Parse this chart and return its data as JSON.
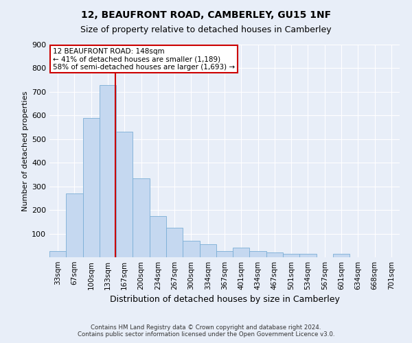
{
  "title": "12, BEAUFRONT ROAD, CAMBERLEY, GU15 1NF",
  "subtitle": "Size of property relative to detached houses in Camberley",
  "xlabel": "Distribution of detached houses by size in Camberley",
  "ylabel": "Number of detached properties",
  "bar_labels": [
    "33sqm",
    "67sqm",
    "100sqm",
    "133sqm",
    "167sqm",
    "200sqm",
    "234sqm",
    "267sqm",
    "300sqm",
    "334sqm",
    "367sqm",
    "401sqm",
    "434sqm",
    "467sqm",
    "501sqm",
    "534sqm",
    "567sqm",
    "601sqm",
    "634sqm",
    "668sqm",
    "701sqm"
  ],
  "bar_values": [
    25,
    270,
    590,
    730,
    530,
    335,
    175,
    125,
    70,
    55,
    25,
    40,
    25,
    20,
    15,
    15,
    0,
    15,
    0,
    0,
    0
  ],
  "bar_color": "#c5d8f0",
  "bar_edgecolor": "#7aaed6",
  "bar_linewidth": 0.6,
  "vline_color": "#cc0000",
  "vline_linewidth": 1.5,
  "vline_x_index": 3.45,
  "ylim": [
    0,
    900
  ],
  "yticks": [
    0,
    100,
    200,
    300,
    400,
    500,
    600,
    700,
    800,
    900
  ],
  "annotation_title": "12 BEAUFRONT ROAD: 148sqm",
  "annotation_line1": "← 41% of detached houses are smaller (1,189)",
  "annotation_line2": "58% of semi-detached houses are larger (1,693) →",
  "annotation_box_facecolor": "#ffffff",
  "annotation_box_edgecolor": "#cc0000",
  "annotation_fontsize": 7.5,
  "footer_line1": "Contains HM Land Registry data © Crown copyright and database right 2024.",
  "footer_line2": "Contains public sector information licensed under the Open Government Licence v3.0.",
  "background_color": "#e8eef8",
  "plot_background": "#e8eef8",
  "grid_color": "#ffffff",
  "title_fontsize": 10,
  "subtitle_fontsize": 9,
  "ylabel_fontsize": 8,
  "xlabel_fontsize": 9,
  "tick_fontsize": 7.5,
  "ytick_fontsize": 8
}
